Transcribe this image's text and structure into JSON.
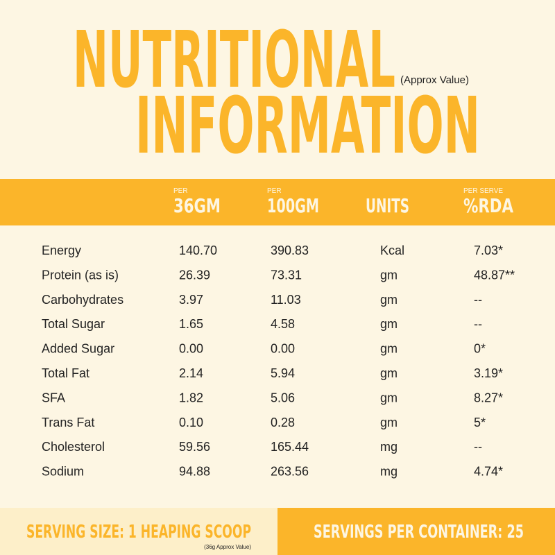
{
  "title": {
    "line1": "NUTRITIONAL",
    "line2": "INFORMATION",
    "note": "(Approx Value)"
  },
  "table": {
    "header": [
      {
        "small": "PER",
        "label": "36GM"
      },
      {
        "small": "PER",
        "label": "100GM"
      },
      {
        "label": "UNITS"
      },
      {
        "small": "PER SERVE",
        "label": "%RDA"
      }
    ],
    "rows": [
      [
        "Energy",
        "140.70",
        "390.83",
        "Kcal",
        "7.03*"
      ],
      [
        "Protein (as is)",
        "26.39",
        "73.31",
        "gm",
        "48.87**"
      ],
      [
        "Carbohydrates",
        "3.97",
        "11.03",
        "gm",
        "--"
      ],
      [
        "Total Sugar",
        "1.65",
        "4.58",
        "gm",
        "--"
      ],
      [
        "Added Sugar",
        "0.00",
        "0.00",
        "gm",
        "0*"
      ],
      [
        "Total Fat",
        "2.14",
        "5.94",
        "gm",
        "3.19*"
      ],
      [
        "SFA",
        "1.82",
        "5.06",
        "gm",
        "8.27*"
      ],
      [
        "Trans Fat",
        "0.10",
        "0.28",
        "gm",
        "5*"
      ],
      [
        "Cholesterol",
        "59.56",
        "165.44",
        "mg",
        "--"
      ],
      [
        "Sodium",
        "94.88",
        "263.56",
        "mg",
        "4.74*"
      ]
    ]
  },
  "footer": {
    "serving_size": "SERVING SIZE: 1 HEAPING SCOOP",
    "serving_note": "(36g Approx Value)",
    "servings": "SERVINGS PER CONTAINER: 25"
  }
}
